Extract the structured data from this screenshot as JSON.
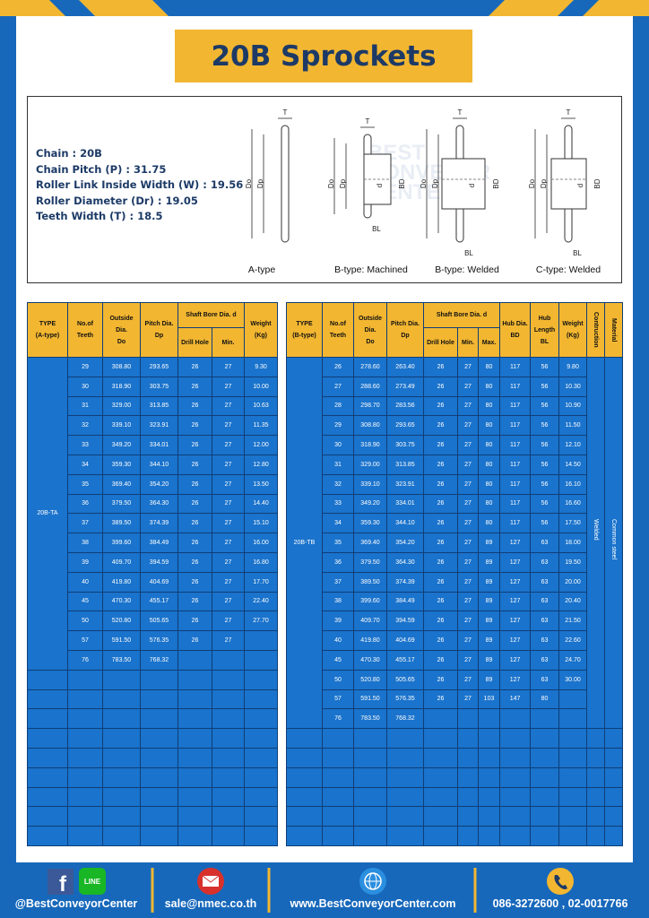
{
  "header": {
    "title": "20B Sprockets"
  },
  "specs": [
    "Chain : 20B",
    "Chain Pitch (P) : 31.75",
    "Roller Link Inside Width (W) : 19.56",
    "Roller Diameter (Dr) : 19.05",
    "Teeth Width (T) : 18.5"
  ],
  "watermark": [
    "BEST",
    "CONVEYOR",
    "CENTER"
  ],
  "diagrams": [
    {
      "caption": "A-type",
      "labels": [
        "T",
        "Do",
        "Dp"
      ]
    },
    {
      "caption": "B-type: Machined",
      "labels": [
        "T",
        "Do",
        "Dp",
        "d",
        "BD",
        "BL"
      ]
    },
    {
      "caption": "B-type: Welded",
      "labels": [
        "T",
        "Do",
        "Dp",
        "d",
        "BD",
        "BL"
      ]
    },
    {
      "caption": "C-type: Welded",
      "labels": [
        "T",
        "Do",
        "Dp",
        "d",
        "BD",
        "BL"
      ]
    }
  ],
  "table_a": {
    "headers": [
      {
        "lines": [
          "TYPE",
          "(A-type)"
        ]
      },
      {
        "lines": [
          "No.of",
          "Teeth"
        ]
      },
      {
        "lines": [
          "Outside",
          "Dia.",
          "Do"
        ]
      },
      {
        "lines": [
          "Pitch Dia.",
          "Dp"
        ]
      },
      {
        "group": "Shaft Bore Dia. d",
        "subs": [
          "Drill Hole",
          "Min."
        ]
      },
      {
        "lines": [
          "Weight",
          "(Kg)"
        ]
      }
    ],
    "type": "20B-TA",
    "rows": [
      [
        "29",
        "308.80",
        "293.65",
        "26",
        "27",
        "9.30"
      ],
      [
        "30",
        "318.90",
        "303.75",
        "26",
        "27",
        "10.00"
      ],
      [
        "31",
        "329.00",
        "313.85",
        "26",
        "27",
        "10.63"
      ],
      [
        "32",
        "339.10",
        "323.91",
        "26",
        "27",
        "11.35"
      ],
      [
        "33",
        "349.20",
        "334.01",
        "26",
        "27",
        "12.00"
      ],
      [
        "34",
        "359.30",
        "344.10",
        "26",
        "27",
        "12.80"
      ],
      [
        "35",
        "369.40",
        "354.20",
        "26",
        "27",
        "13.50"
      ],
      [
        "36",
        "379.50",
        "364.30",
        "26",
        "27",
        "14.40"
      ],
      [
        "37",
        "389.50",
        "374.39",
        "26",
        "27",
        "15.10"
      ],
      [
        "38",
        "399.60",
        "384.49",
        "26",
        "27",
        "16.00"
      ],
      [
        "39",
        "409.70",
        "394.59",
        "26",
        "27",
        "16.80"
      ],
      [
        "40",
        "419.80",
        "404.69",
        "26",
        "27",
        "17.70"
      ],
      [
        "45",
        "470.30",
        "455.17",
        "26",
        "27",
        "22.40"
      ],
      [
        "50",
        "520.80",
        "505.65",
        "26",
        "27",
        "27.70"
      ],
      [
        "57",
        "591.50",
        "576.35",
        "26",
        "27",
        null
      ],
      [
        "76",
        "783.50",
        "768.32",
        null,
        null,
        null
      ]
    ]
  },
  "table_b": {
    "headers": [
      {
        "lines": [
          "TYPE",
          "(B-type)"
        ]
      },
      {
        "lines": [
          "No.of",
          "Teeth"
        ]
      },
      {
        "lines": [
          "Outside",
          "Dia.",
          "Do"
        ]
      },
      {
        "lines": [
          "Pitch Dia.",
          "Dp"
        ]
      },
      {
        "group": "Shaft Bore Dia. d",
        "subs": [
          "Drill Hole",
          "Min.",
          "Max."
        ]
      },
      {
        "lines": [
          "Hub Dia.",
          "BD"
        ]
      },
      {
        "lines": [
          "Hub",
          "Length",
          "BL"
        ]
      },
      {
        "lines": [
          "Weight",
          "(Kg)"
        ]
      }
    ],
    "side": [
      {
        "header": "Contruction",
        "value": "Welded"
      },
      {
        "header": "Material",
        "value": "Common steel"
      }
    ],
    "type": "20B-TB",
    "rows": [
      [
        "26",
        "278.60",
        "263.40",
        "26",
        "27",
        "80",
        "117",
        "56",
        "9.80"
      ],
      [
        "27",
        "288.60",
        "273.49",
        "26",
        "27",
        "80",
        "117",
        "56",
        "10.30"
      ],
      [
        "28",
        "298.70",
        "283.56",
        "26",
        "27",
        "80",
        "117",
        "56",
        "10.90"
      ],
      [
        "29",
        "308.80",
        "293.65",
        "26",
        "27",
        "80",
        "117",
        "56",
        "11.50"
      ],
      [
        "30",
        "318.90",
        "303.75",
        "26",
        "27",
        "80",
        "117",
        "56",
        "12.10"
      ],
      [
        "31",
        "329.00",
        "313.85",
        "26",
        "27",
        "80",
        "117",
        "56",
        "14.50"
      ],
      [
        "32",
        "339.10",
        "323.91",
        "26",
        "27",
        "80",
        "117",
        "56",
        "16.10"
      ],
      [
        "33",
        "349.20",
        "334.01",
        "26",
        "27",
        "80",
        "117",
        "56",
        "16.60"
      ],
      [
        "34",
        "359.30",
        "344.10",
        "26",
        "27",
        "80",
        "117",
        "56",
        "17.50"
      ],
      [
        "35",
        "369.40",
        "354.20",
        "26",
        "27",
        "89",
        "127",
        "63",
        "18.00"
      ],
      [
        "36",
        "379.50",
        "364.30",
        "26",
        "27",
        "89",
        "127",
        "63",
        "19.50"
      ],
      [
        "37",
        "389.50",
        "374.39",
        "26",
        "27",
        "89",
        "127",
        "63",
        "20.00"
      ],
      [
        "38",
        "399.60",
        "384.49",
        "26",
        "27",
        "89",
        "127",
        "63",
        "20.40"
      ],
      [
        "39",
        "409.70",
        "394.59",
        "26",
        "27",
        "89",
        "127",
        "63",
        "21.50"
      ],
      [
        "40",
        "419.80",
        "404.69",
        "26",
        "27",
        "89",
        "127",
        "63",
        "22.60"
      ],
      [
        "45",
        "470.30",
        "455.17",
        "26",
        "27",
        "89",
        "127",
        "63",
        "24.70"
      ],
      [
        "50",
        "520.80",
        "505.65",
        "26",
        "27",
        "89",
        "127",
        "63",
        "30.00"
      ],
      [
        "57",
        "591.50",
        "576.35",
        "26",
        "27",
        "103",
        "147",
        "80",
        null
      ],
      [
        "76",
        "783.50",
        "768.32",
        null,
        null,
        null,
        null,
        null,
        null
      ]
    ]
  },
  "footer": {
    "icons": [
      "f",
      "LINE"
    ],
    "items": [
      "@BestConveyorCenter",
      "sale@nmec.co.th",
      "www.BestConveyorCenter.com",
      "086-3272600 , 02-0017766"
    ]
  }
}
